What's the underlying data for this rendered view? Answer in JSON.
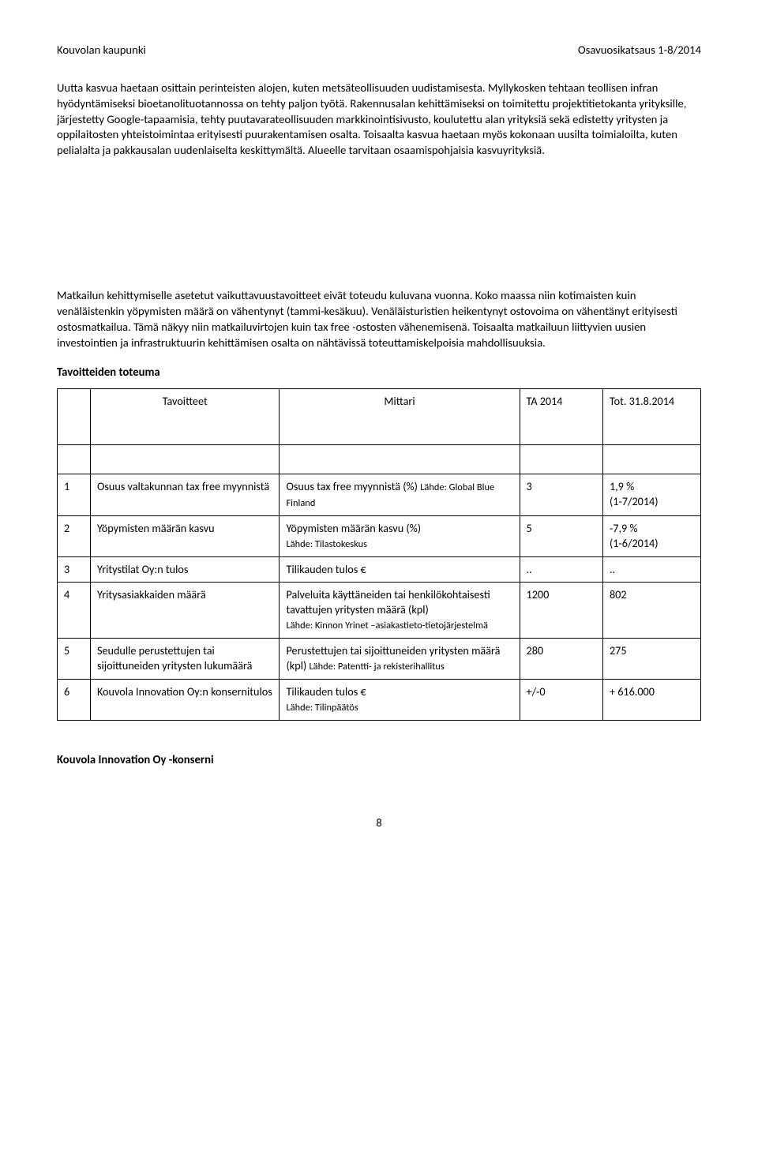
{
  "header": {
    "left": "Kouvolan kaupunki",
    "right": "Osavuosikatsaus 1-8/2014"
  },
  "paragraphs": {
    "p1": "Uutta kasvua haetaan osittain perinteisten alojen, kuten metsäteollisuuden uudistamisesta. Myllykosken tehtaan teollisen infran hyödyntämiseksi bioetanolituotannossa on tehty paljon työtä. Rakennusalan kehittämiseksi on toimitettu projektitietokanta yrityksille, järjestetty Google-tapaamisia, tehty puutavarateollisuuden markkinointisivusto, koulutettu alan yrityksiä sekä edistetty yritysten ja oppilaitosten yhteistoimintaa erityisesti puurakentamisen osalta.   Toisaalta kasvua haetaan myös kokonaan uusilta toimialoilta, kuten pelialalta ja pakkausalan uudenlaiselta keskittymältä. Alueelle tarvitaan osaamispohjaisia kasvuyrityksiä.",
    "p2": "Matkailun kehittymiselle asetetut vaikuttavuustavoitteet eivät toteudu kuluvana vuonna. Koko maassa niin kotimaisten kuin venäläistenkin yöpymisten määrä on vähentynyt (tammi-kesäkuu). Venäläisturistien heikentynyt ostovoima on vähentänyt erityisesti ostosmatkailua. Tämä näkyy niin matkailuvirtojen kuin tax free -ostosten vähenemisenä. Toisaalta matkailuun liittyvien uusien investointien ja infrastruktuurin kehittämisen osalta on nähtävissä toteuttamiskelpoisia mahdollisuuksia."
  },
  "section_title": "Tavoitteiden toteuma",
  "table": {
    "head": {
      "tav": "Tavoitteet",
      "mit": "Mittari",
      "ta": "TA 2014",
      "tot": "Tot. 31.8.2014"
    },
    "rows": [
      {
        "n": "1",
        "tav": "Osuus valtakunnan tax free myynnistä",
        "mit": "Osuus tax free myynnistä (%) ",
        "mit_src": "Lähde: Global Blue Finland",
        "ta": "3",
        "tot": "1,9 %",
        "tot2": "(1-7/2014)"
      },
      {
        "n": "2",
        "tav": "Yöpymisten määrän kasvu",
        "mit": "Yöpymisten määrän kasvu (%)",
        "mit_src": "Lähde: Tilastokeskus",
        "ta": "5",
        "tot": "-7,9 %",
        "tot2": "(1-6/2014)"
      },
      {
        "n": "3",
        "tav": "Yritystilat Oy:n tulos",
        "mit": "Tilikauden tulos €",
        "mit_src": "",
        "ta": "..",
        "tot": "..",
        "tot2": ""
      },
      {
        "n": "4",
        "tav": "Yritysasiakkaiden määrä",
        "mit": "Palveluita käyttäneiden tai henkilökohtaisesti tavattujen yritysten määrä (kpl)",
        "mit_src": "Lähde: Kinnon Yrinet –asiakastieto-tietojärjestelmä",
        "ta": "1200",
        "tot": "802",
        "tot2": ""
      },
      {
        "n": "5",
        "tav": "Seudulle perustettujen tai sijoittuneiden yritysten lukumäärä",
        "mit": "Perustettujen tai sijoittuneiden yritysten määrä (kpl) ",
        "mit_src": "Lähde: Patentti- ja rekisterihallitus",
        "ta": "280",
        "tot": "275",
        "tot2": ""
      },
      {
        "n": "6",
        "tav": "Kouvola Innovation Oy:n konsernitulos",
        "mit": "Tilikauden tulos €",
        "mit_src": "Lähde: Tilinpäätös",
        "ta": "+/-0",
        "tot": "+ 616.000",
        "tot2": ""
      }
    ]
  },
  "footer_title": "Kouvola Innovation Oy -konserni",
  "page_number": "8"
}
